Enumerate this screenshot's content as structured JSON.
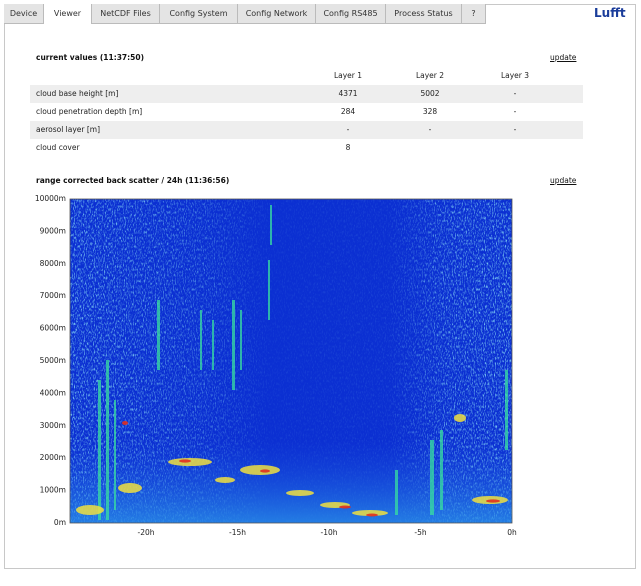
{
  "tabs": [
    "Device",
    "Viewer",
    "NetCDF Files",
    "Config System",
    "Config Network",
    "Config RS485",
    "Process Status",
    "?"
  ],
  "logo": "Lufft",
  "current": {
    "title": "current values  (11:37:50)",
    "update": "update",
    "columns": [
      "Layer 1",
      "Layer 2",
      "Layer 3"
    ],
    "rows": [
      [
        "cloud base height  [m]",
        4371,
        5002,
        "-"
      ],
      [
        "cloud penetration depth  [m]",
        284,
        328,
        "-"
      ],
      [
        "aerosol layer  [m]",
        "-",
        "-",
        "-"
      ],
      [
        "cloud cover",
        8
      ]
    ]
  },
  "plot": {
    "title": "range corrected back scatter / 24h  (11:36:56)",
    "update": "update",
    "y_labels": [
      "10000m",
      "9000m",
      "8000m",
      "7000m",
      "6000m",
      "5000m",
      "4000m",
      "3000m",
      "2000m",
      "1000m",
      "0m"
    ],
    "x_labels": [
      "-20h",
      "-15h",
      "-10h",
      "-5h",
      "0h"
    ]
  }
}
